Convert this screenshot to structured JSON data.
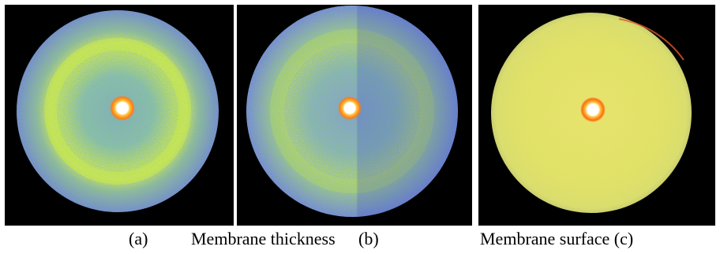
{
  "captions": {
    "label_a": "(a)",
    "label_thickness": "Membrane thickness",
    "label_b": "(b)",
    "label_surface": "Membrane surface (c)"
  },
  "colors": {
    "background": "#000000",
    "speckle_blue": "#4a57c8",
    "speckle_green": "#8fd14f",
    "ring_yellow": "#cfe84a",
    "beam_center": "#ffffff",
    "beam_halo": "#ff8a1a",
    "surface_fill": "#e3e26a"
  },
  "panels": [
    {
      "id": "a",
      "description_icon": "scattering-pattern-icon"
    },
    {
      "id": "b",
      "description_icon": "scattering-pattern-icon"
    },
    {
      "id": "c",
      "description_icon": "scattering-pattern-icon"
    }
  ]
}
